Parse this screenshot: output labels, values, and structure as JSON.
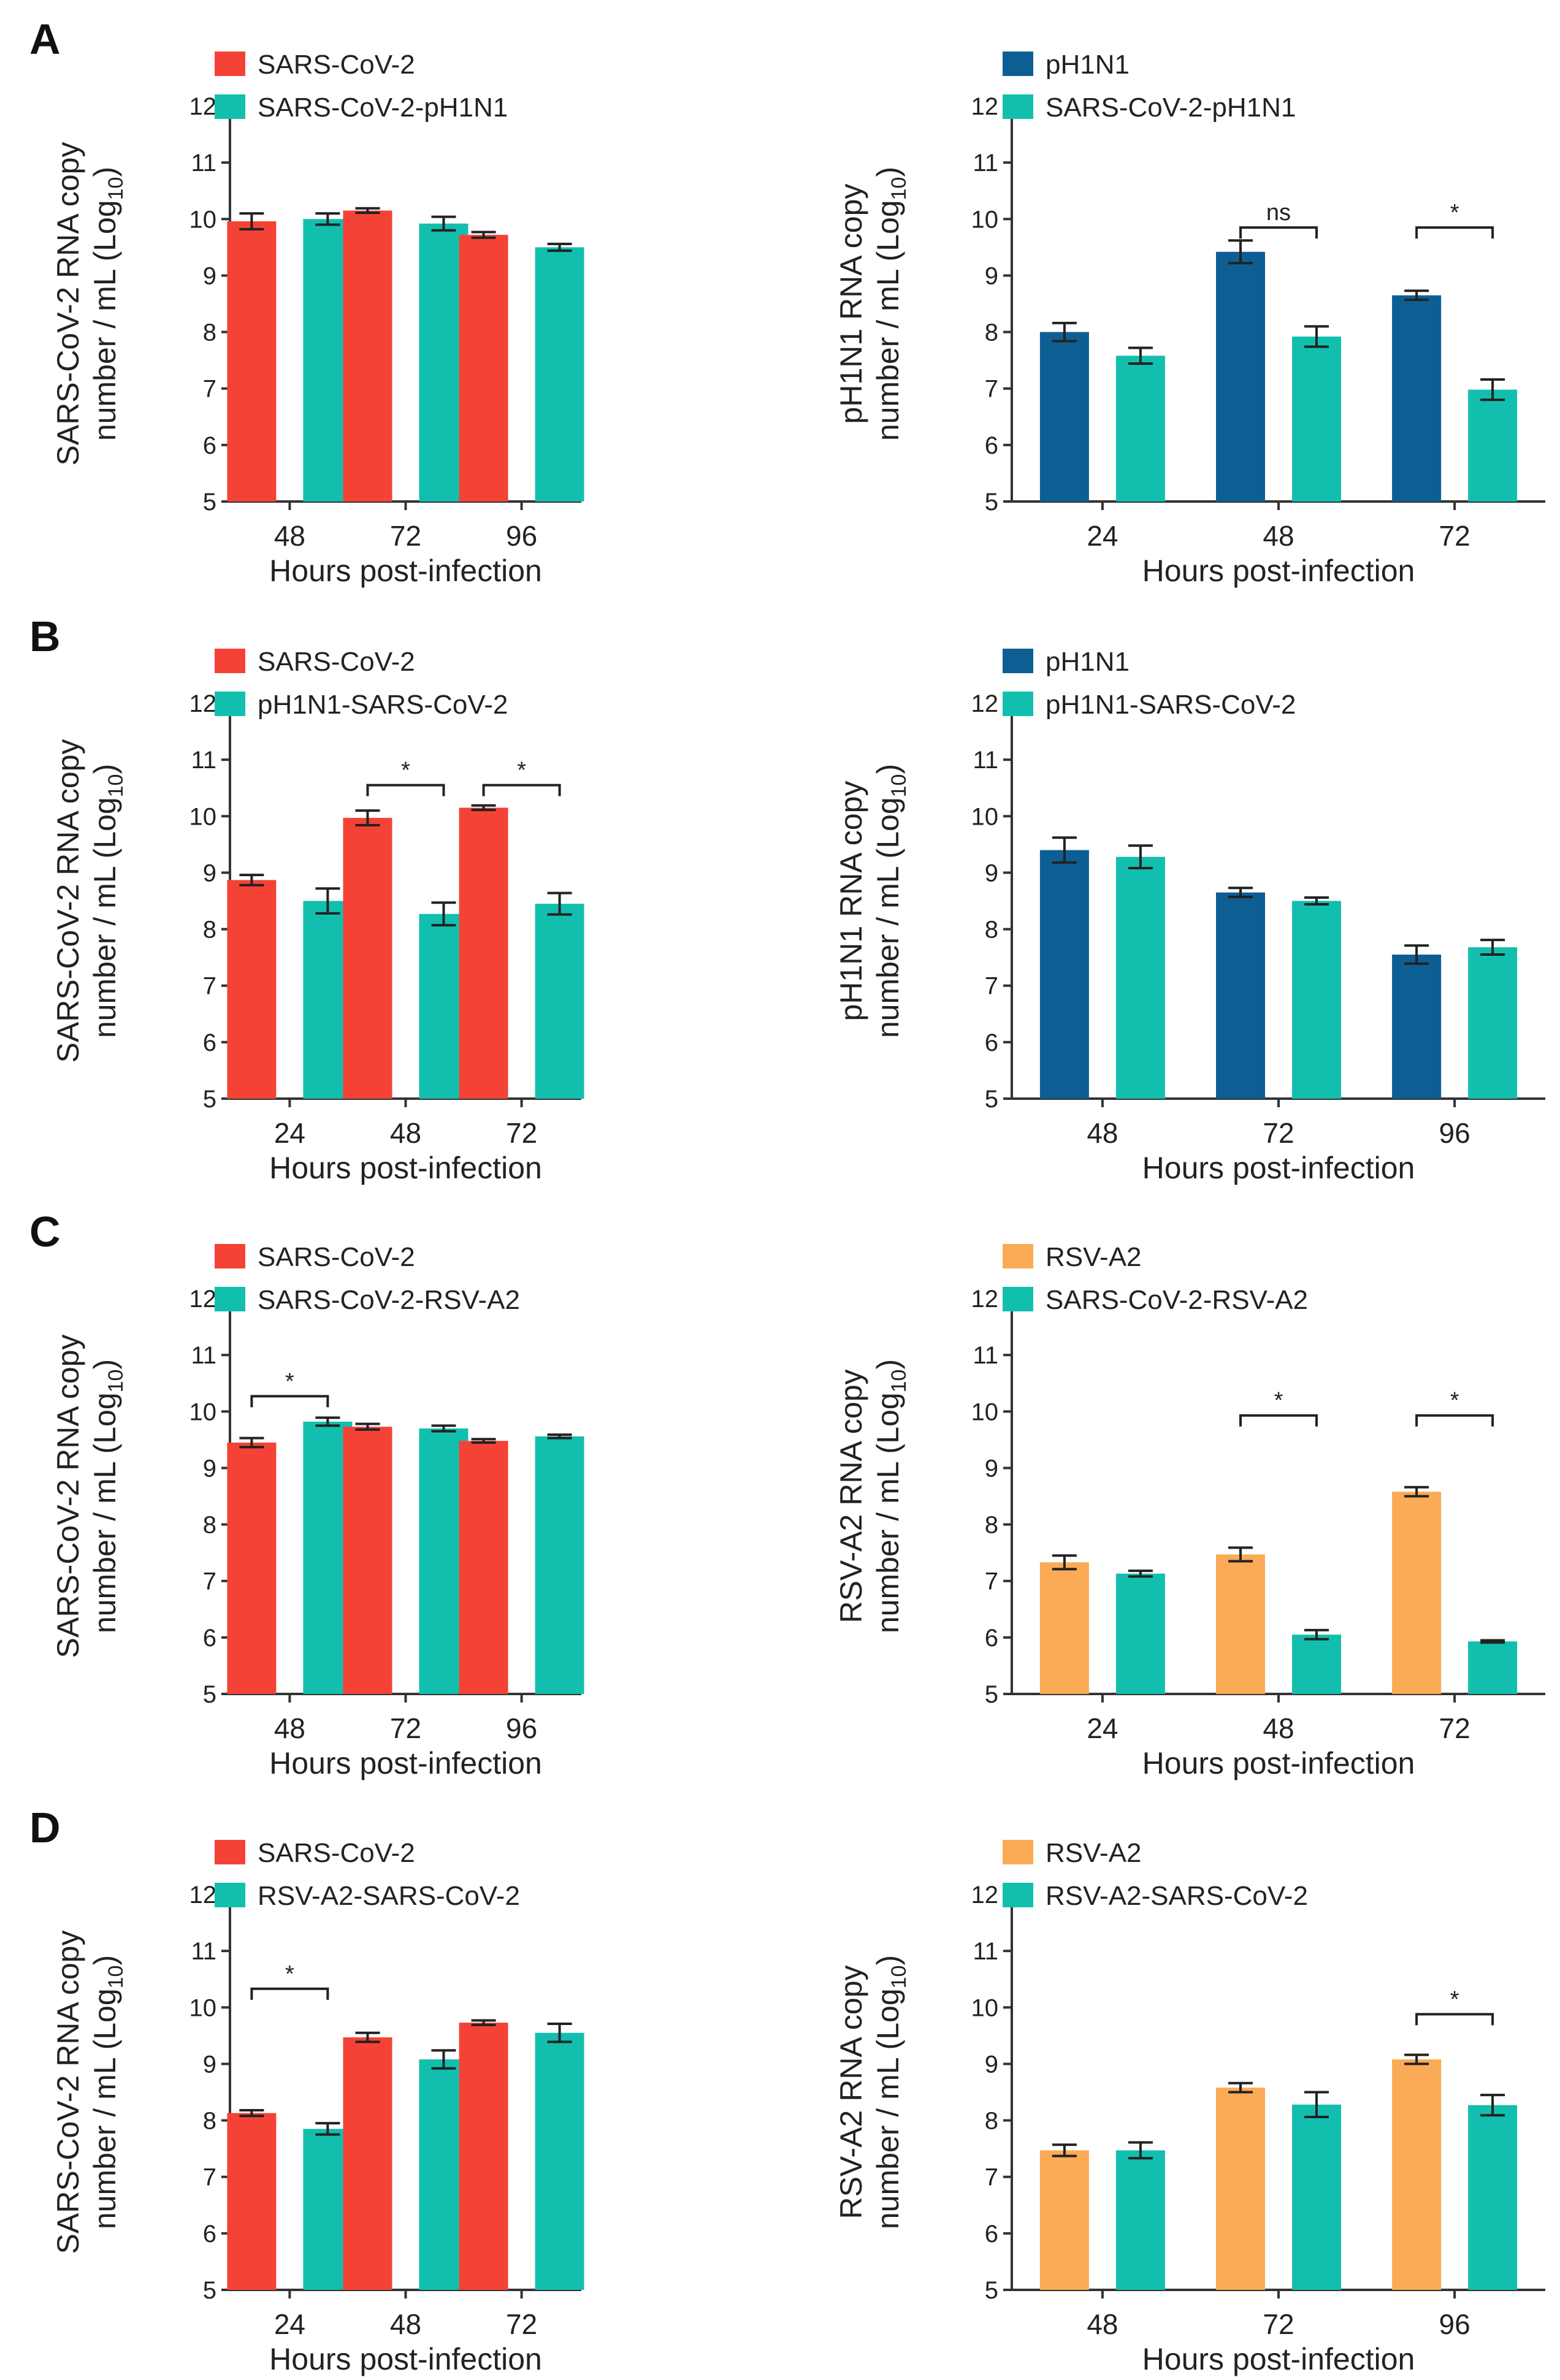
{
  "panel_labels": [
    "A",
    "B",
    "C",
    "D"
  ],
  "colors": {
    "sars": "#f44336",
    "h1n1": "#0d5f93",
    "rsv": "#fbab55",
    "coinfection": "#12bfae"
  },
  "chart_data": [
    {
      "type": "bar",
      "panel": "A",
      "title": "",
      "xlabel": "Hours post-infection",
      "ylabel_line1": "SARS-CoV-2 RNA copy",
      "ylabel_line2_prefix": "number / mL (Log",
      "ylabel_sub": "10",
      "ylabel_suffix": ")",
      "ylim": [
        5,
        12
      ],
      "yticks": [
        "5",
        "6",
        "7",
        "8",
        "9",
        "10",
        "11",
        "12"
      ],
      "categories": [
        "48",
        "72",
        "96"
      ],
      "series": [
        {
          "name": "SARS-CoV-2",
          "color_key": "sars",
          "values": [
            9.96,
            10.15,
            9.72
          ],
          "errors": [
            0.14,
            0.04,
            0.05
          ]
        },
        {
          "name": "SARS-CoV-2-pH1N1",
          "color_key": "coinfection",
          "values": [
            10.0,
            9.92,
            9.5
          ],
          "errors": [
            0.1,
            0.12,
            0.06
          ]
        }
      ],
      "significance": []
    },
    {
      "type": "bar",
      "panel": "A",
      "title": "",
      "xlabel": "Hours post-infection",
      "ylabel_line1": "pH1N1 RNA copy",
      "ylabel_line2_prefix": "number / mL (Log",
      "ylabel_sub": "10",
      "ylabel_suffix": ")",
      "ylim": [
        5,
        12
      ],
      "yticks": [
        "5",
        "6",
        "7",
        "8",
        "9",
        "10",
        "11",
        "12"
      ],
      "categories": [
        "24",
        "48",
        "72"
      ],
      "series": [
        {
          "name": "pH1N1",
          "color_key": "h1n1",
          "values": [
            8.0,
            9.42,
            8.65
          ],
          "errors": [
            0.16,
            0.2,
            0.08
          ]
        },
        {
          "name": "SARS-CoV-2-pH1N1",
          "color_key": "coinfection",
          "values": [
            7.58,
            7.92,
            6.98
          ],
          "errors": [
            0.14,
            0.18,
            0.18
          ]
        }
      ],
      "significance": [
        {
          "category_index": 1,
          "label": "ns",
          "y": 9.85
        },
        {
          "category_index": 2,
          "label": "*",
          "y": 9.85
        }
      ]
    },
    {
      "type": "bar",
      "panel": "B",
      "title": "",
      "xlabel": "Hours post-infection",
      "ylabel_line1": "SARS-CoV-2 RNA copy",
      "ylabel_line2_prefix": "number / mL (Log",
      "ylabel_sub": "10",
      "ylabel_suffix": ")",
      "ylim": [
        5,
        12
      ],
      "yticks": [
        "5",
        "6",
        "7",
        "8",
        "9",
        "10",
        "11",
        "12"
      ],
      "categories": [
        "24",
        "48",
        "72"
      ],
      "series": [
        {
          "name": "SARS-CoV-2",
          "color_key": "sars",
          "values": [
            8.87,
            9.97,
            10.15
          ],
          "errors": [
            0.09,
            0.13,
            0.04
          ]
        },
        {
          "name": "pH1N1-SARS-CoV-2",
          "color_key": "coinfection",
          "values": [
            8.5,
            8.27,
            8.45
          ],
          "errors": [
            0.22,
            0.2,
            0.19
          ]
        }
      ],
      "significance": [
        {
          "category_index": 1,
          "label": "*",
          "y": 10.55
        },
        {
          "category_index": 2,
          "label": "*",
          "y": 10.55
        }
      ]
    },
    {
      "type": "bar",
      "panel": "B",
      "title": "",
      "xlabel": "Hours post-infection",
      "ylabel_line1": "pH1N1 RNA copy",
      "ylabel_line2_prefix": "number / mL (Log",
      "ylabel_sub": "10",
      "ylabel_suffix": ")",
      "ylim": [
        5,
        12
      ],
      "yticks": [
        "5",
        "6",
        "7",
        "8",
        "9",
        "10",
        "11",
        "12"
      ],
      "categories": [
        "48",
        "72",
        "96"
      ],
      "series": [
        {
          "name": "pH1N1",
          "color_key": "h1n1",
          "values": [
            9.4,
            8.65,
            7.55
          ],
          "errors": [
            0.22,
            0.08,
            0.16
          ]
        },
        {
          "name": "pH1N1-SARS-CoV-2",
          "color_key": "coinfection",
          "values": [
            9.28,
            8.5,
            7.68
          ],
          "errors": [
            0.2,
            0.06,
            0.13
          ]
        }
      ],
      "significance": []
    },
    {
      "type": "bar",
      "panel": "C",
      "title": "",
      "xlabel": "Hours post-infection",
      "ylabel_line1": "SARS-CoV-2 RNA copy",
      "ylabel_line2_prefix": "number / mL (Log",
      "ylabel_sub": "10",
      "ylabel_suffix": ")",
      "ylim": [
        5,
        12
      ],
      "yticks": [
        "5",
        "6",
        "7",
        "8",
        "9",
        "10",
        "11",
        "12"
      ],
      "categories": [
        "48",
        "72",
        "96"
      ],
      "series": [
        {
          "name": "SARS-CoV-2",
          "color_key": "sars",
          "values": [
            9.45,
            9.73,
            9.48
          ],
          "errors": [
            0.08,
            0.05,
            0.03
          ]
        },
        {
          "name": "SARS-CoV-2-RSV-A2",
          "color_key": "coinfection",
          "values": [
            9.82,
            9.7,
            9.56
          ],
          "errors": [
            0.07,
            0.05,
            0.03
          ]
        }
      ],
      "significance": [
        {
          "category_index": 0,
          "label": "*",
          "y": 10.27
        }
      ]
    },
    {
      "type": "bar",
      "panel": "C",
      "title": "",
      "xlabel": "Hours post-infection",
      "ylabel_line1": "RSV-A2 RNA copy",
      "ylabel_line2_prefix": "number / mL (Log",
      "ylabel_sub": "10",
      "ylabel_suffix": ")",
      "ylim": [
        5,
        12
      ],
      "yticks": [
        "5",
        "6",
        "7",
        "8",
        "9",
        "10",
        "11",
        "12"
      ],
      "categories": [
        "24",
        "48",
        "72"
      ],
      "series": [
        {
          "name": "RSV-A2",
          "color_key": "rsv",
          "values": [
            7.33,
            7.47,
            8.58
          ],
          "errors": [
            0.12,
            0.12,
            0.08
          ]
        },
        {
          "name": "SARS-CoV-2-RSV-A2",
          "color_key": "coinfection",
          "values": [
            7.13,
            6.05,
            5.93
          ],
          "errors": [
            0.05,
            0.08,
            0.02
          ]
        }
      ],
      "significance": [
        {
          "category_index": 1,
          "label": "*",
          "y": 9.93
        },
        {
          "category_index": 2,
          "label": "*",
          "y": 9.93
        }
      ]
    },
    {
      "type": "bar",
      "panel": "D",
      "title": "",
      "xlabel": "Hours post-infection",
      "ylabel_line1": "SARS-CoV-2 RNA copy",
      "ylabel_line2_prefix": "number / mL (Log",
      "ylabel_sub": "10",
      "ylabel_suffix": ")",
      "ylim": [
        5,
        12
      ],
      "yticks": [
        "5",
        "6",
        "7",
        "8",
        "9",
        "10",
        "11",
        "12"
      ],
      "categories": [
        "24",
        "48",
        "72"
      ],
      "series": [
        {
          "name": "SARS-CoV-2",
          "color_key": "sars",
          "values": [
            8.13,
            9.47,
            9.73
          ],
          "errors": [
            0.05,
            0.08,
            0.04
          ]
        },
        {
          "name": "RSV-A2-SARS-CoV-2",
          "color_key": "coinfection",
          "values": [
            7.85,
            9.08,
            9.55
          ],
          "errors": [
            0.1,
            0.16,
            0.16
          ]
        }
      ],
      "significance": [
        {
          "category_index": 0,
          "label": "*",
          "y": 10.33
        }
      ]
    },
    {
      "type": "bar",
      "panel": "D",
      "title": "",
      "xlabel": "Hours post-infection",
      "ylabel_line1": "RSV-A2 RNA copy",
      "ylabel_line2_prefix": "number / mL (Log",
      "ylabel_sub": "10",
      "ylabel_suffix": ")",
      "ylim": [
        5,
        12
      ],
      "yticks": [
        "5",
        "6",
        "7",
        "8",
        "9",
        "10",
        "11",
        "12"
      ],
      "categories": [
        "48",
        "72",
        "96"
      ],
      "series": [
        {
          "name": "RSV-A2",
          "color_key": "rsv",
          "values": [
            7.47,
            8.58,
            9.08
          ],
          "errors": [
            0.1,
            0.08,
            0.08
          ]
        },
        {
          "name": "RSV-A2-SARS-CoV-2",
          "color_key": "coinfection",
          "values": [
            7.47,
            8.28,
            8.27
          ],
          "errors": [
            0.14,
            0.22,
            0.18
          ]
        }
      ],
      "significance": [
        {
          "category_index": 2,
          "label": "*",
          "y": 9.88
        }
      ]
    }
  ]
}
